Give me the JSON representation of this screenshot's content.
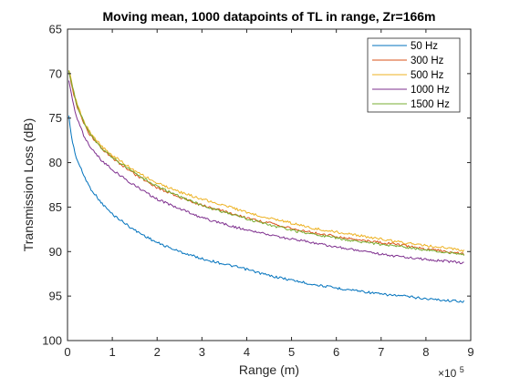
{
  "chart_data": {
    "type": "line",
    "title": "Moving mean, 1000 datapoints of TL in range, Zr=166m",
    "xlabel": "Range (m)",
    "ylabel": "Transmission Loss (dB)",
    "x_exponent_label": "×10",
    "x_exponent_power": "5",
    "xlim": [
      0,
      9
    ],
    "ylim": [
      65,
      100
    ],
    "y_reversed": true,
    "x_ticks": [
      0,
      1,
      2,
      3,
      4,
      5,
      6,
      7,
      8,
      9
    ],
    "x_tick_labels": [
      "0",
      "1",
      "2",
      "3",
      "4",
      "5",
      "6",
      "7",
      "8",
      "9"
    ],
    "y_ticks": [
      65,
      70,
      75,
      80,
      85,
      90,
      95,
      100
    ],
    "y_tick_labels": [
      "65",
      "70",
      "75",
      "80",
      "85",
      "90",
      "95",
      "100"
    ],
    "grid": false,
    "legend_position": "top-right",
    "x": [
      0.03,
      0.1,
      0.2,
      0.35,
      0.5,
      0.75,
      1.0,
      1.5,
      2.0,
      2.5,
      3.0,
      3.5,
      4.0,
      4.5,
      5.0,
      5.5,
      6.0,
      6.5,
      7.0,
      7.5,
      8.0,
      8.5,
      8.85
    ],
    "series": [
      {
        "name": "50 Hz",
        "color": "#0072BD",
        "values": [
          74.8,
          77.5,
          79.5,
          81.3,
          82.8,
          84.5,
          85.8,
          87.6,
          89.0,
          90.0,
          90.8,
          91.4,
          92.0,
          92.7,
          93.2,
          93.7,
          94.1,
          94.4,
          94.8,
          95.0,
          95.3,
          95.5,
          95.6
        ]
      },
      {
        "name": "300 Hz",
        "color": "#D95319",
        "values": [
          69.8,
          71.5,
          73.5,
          75.5,
          76.9,
          78.4,
          79.5,
          81.3,
          82.8,
          83.9,
          84.8,
          85.5,
          86.2,
          86.8,
          87.4,
          87.9,
          88.3,
          88.7,
          89.0,
          89.3,
          89.7,
          90.0,
          90.3
        ]
      },
      {
        "name": "500 Hz",
        "color": "#EDB120",
        "values": [
          69.5,
          71.2,
          73.2,
          75.2,
          76.6,
          78.1,
          79.2,
          80.9,
          82.3,
          83.3,
          84.1,
          84.8,
          85.6,
          86.2,
          86.8,
          87.4,
          87.8,
          88.2,
          88.6,
          89.0,
          89.3,
          89.6,
          89.9
        ]
      },
      {
        "name": "1000 Hz",
        "color": "#7E2F8E",
        "values": [
          70.8,
          72.7,
          74.8,
          76.8,
          78.2,
          79.7,
          80.8,
          82.6,
          84.1,
          85.2,
          86.2,
          86.9,
          87.6,
          88.1,
          88.6,
          89.0,
          89.5,
          89.9,
          90.3,
          90.6,
          90.9,
          91.1,
          91.3
        ]
      },
      {
        "name": "1500 Hz",
        "color": "#77AC30",
        "values": [
          69.6,
          71.3,
          73.3,
          75.3,
          76.8,
          78.3,
          79.4,
          81.2,
          82.7,
          83.8,
          84.8,
          85.6,
          86.3,
          87.0,
          87.6,
          88.1,
          88.5,
          88.9,
          89.2,
          89.5,
          89.8,
          90.1,
          90.4
        ]
      }
    ]
  }
}
